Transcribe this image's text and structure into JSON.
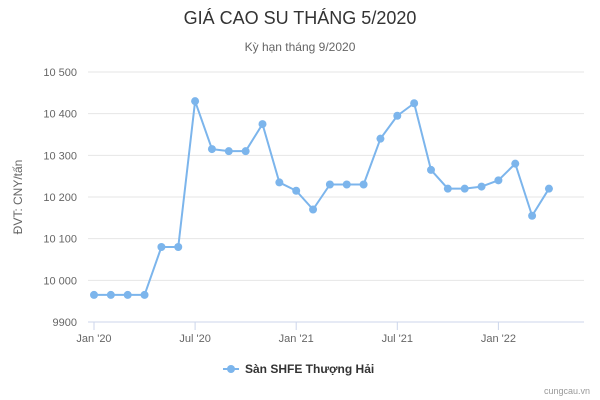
{
  "colors": {
    "series": "#7cb5ec",
    "grid": "#e6e6e6",
    "axis": "#ccd6eb"
  },
  "chart_data": {
    "type": "line",
    "title": "GIÁ CAO SU THÁNG 5/2020",
    "subtitle": "Kỳ hạn tháng 9/2020",
    "ylabel": "ĐVT: CNY/tấn",
    "xlabel": "",
    "ylim": [
      9900,
      10500
    ],
    "y_ticks": [
      9900,
      10000,
      10100,
      10200,
      10300,
      10400,
      10500
    ],
    "y_tick_labels": [
      "9900",
      "10 000",
      "10 100",
      "10 200",
      "10 300",
      "10 400",
      "10 500"
    ],
    "x_tick_labels": [
      "Jan '20",
      "Jul '20",
      "Jan '21",
      "Jul '21",
      "Jan '22"
    ],
    "x_tick_indices": [
      0,
      6,
      12,
      18,
      24
    ],
    "grid": true,
    "legend_position": "bottom-center",
    "series": [
      {
        "name": "Sàn SHFE Thượng Hải",
        "values": [
          9965,
          9965,
          9965,
          9965,
          10080,
          10080,
          10430,
          10315,
          10310,
          10310,
          10375,
          10235,
          10215,
          10170,
          10230,
          10230,
          10230,
          10340,
          10395,
          10425,
          10265,
          10220,
          10220,
          10225,
          10240,
          10280,
          10155,
          10220
        ]
      }
    ]
  },
  "credit": "cungcau.vn"
}
